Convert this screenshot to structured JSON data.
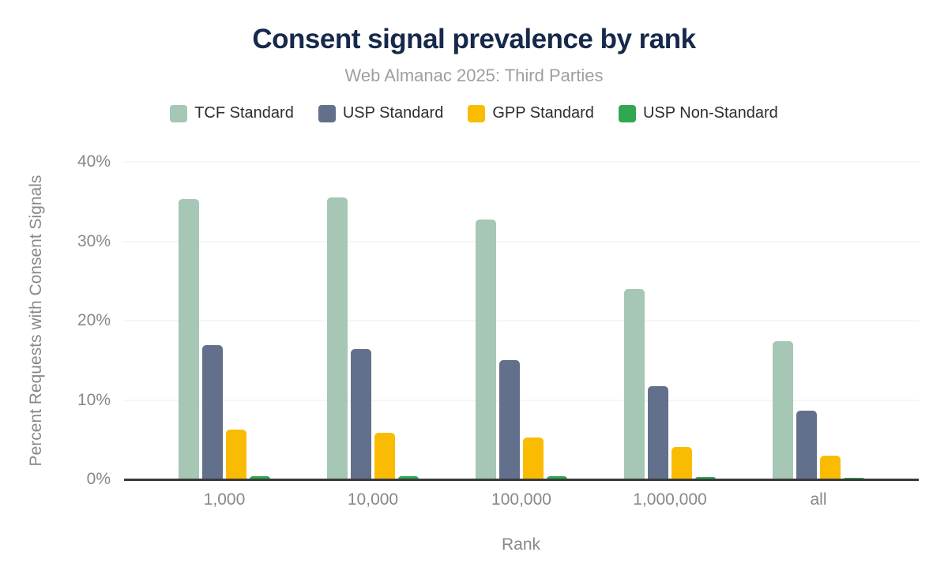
{
  "chart_data": {
    "type": "bar",
    "title": "Consent signal prevalence by rank",
    "subtitle": "Web Almanac 2025: Third Parties",
    "xlabel": "Rank",
    "ylabel": "Percent Requests with Consent Signals",
    "categories": [
      "1,000",
      "10,000",
      "100,000",
      "1,000,000",
      "all"
    ],
    "series": [
      {
        "name": "TCF Standard",
        "color": "#a6c6b6",
        "values": [
          35.3,
          35.5,
          32.7,
          24.0,
          17.4
        ]
      },
      {
        "name": "USP Standard",
        "color": "#62708c",
        "values": [
          16.9,
          16.4,
          15.0,
          11.7,
          8.7
        ]
      },
      {
        "name": "GPP Standard",
        "color": "#fabc02",
        "values": [
          6.3,
          5.9,
          5.3,
          4.1,
          3.0
        ]
      },
      {
        "name": "USP Non-Standard",
        "color": "#2fa84f",
        "values": [
          0.4,
          0.4,
          0.4,
          0.3,
          0.25
        ]
      }
    ],
    "ylim": [
      0,
      40
    ],
    "yticks": [
      {
        "label": "0%",
        "value": 0
      },
      {
        "label": "10%",
        "value": 10
      },
      {
        "label": "20%",
        "value": 20
      },
      {
        "label": "30%",
        "value": 30
      },
      {
        "label": "40%",
        "value": 40
      }
    ],
    "grid": true,
    "legend_position": "top"
  },
  "colors": {
    "title": "#16294b",
    "subtitle": "#9e9e9e",
    "axis-text": "#85888c",
    "legend-text": "#2e2e2e",
    "axis-line": "#3a3a3a",
    "gridline": "#ededed",
    "background": "#ffffff"
  }
}
